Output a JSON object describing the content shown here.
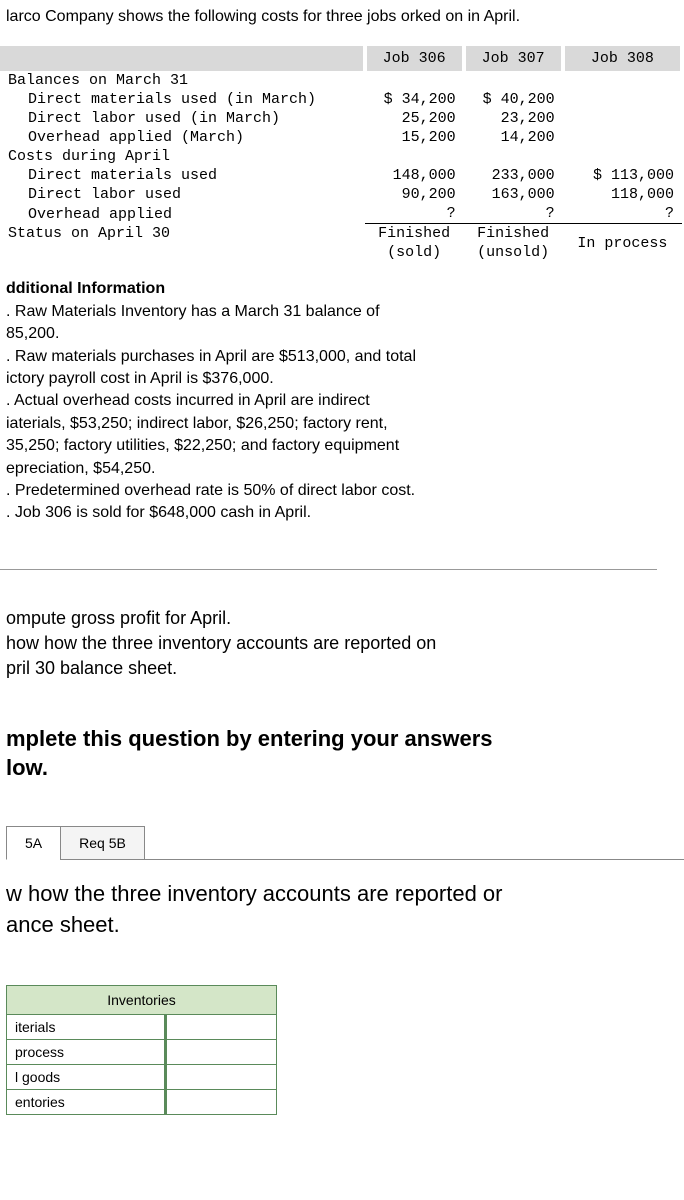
{
  "intro": "larco Company shows the following costs for three jobs \norked on in April.",
  "jobTable": {
    "headers": [
      "",
      "Job 306",
      "Job 307",
      "Job 308"
    ],
    "rows": [
      {
        "label": "Balances on March 31",
        "indent": false,
        "j306": "",
        "j307": "",
        "j308": ""
      },
      {
        "label": "Direct materials used (in March)",
        "indent": true,
        "j306": "$ 34,200",
        "j307": "$ 40,200",
        "j308": ""
      },
      {
        "label": "Direct labor used (in March)",
        "indent": true,
        "j306": "25,200",
        "j307": "23,200",
        "j308": ""
      },
      {
        "label": "Overhead applied (March)",
        "indent": true,
        "j306": "15,200",
        "j307": "14,200",
        "j308": ""
      },
      {
        "label": "Costs during April",
        "indent": false,
        "j306": "",
        "j307": "",
        "j308": ""
      },
      {
        "label": "Direct materials used",
        "indent": true,
        "j306": "148,000",
        "j307": "233,000",
        "j308": "$ 113,000"
      },
      {
        "label": "Direct labor used",
        "indent": true,
        "j306": "90,200",
        "j307": "163,000",
        "j308": "118,000"
      },
      {
        "label": "Overhead applied",
        "indent": true,
        "j306": "?",
        "j307": "?",
        "j308": "?"
      }
    ],
    "statusRow": {
      "label": "Status on April 30",
      "j306a": "Finished",
      "j306b": "(sold)",
      "j307a": "Finished",
      "j307b": "(unsold)",
      "j308": "In process"
    }
  },
  "additionalTitle": "dditional Information",
  "additionalLines": [
    ". Raw Materials Inventory has a March 31 balance of",
    "85,200.",
    ". Raw materials purchases in April are $513,000, and total",
    "ictory payroll cost in April is $376,000.",
    ". Actual overhead costs incurred in April are indirect",
    "iaterials, $53,250; indirect labor, $26,250; factory rent,",
    "35,250; factory utilities, $22,250; and factory equipment",
    "epreciation, $54,250.",
    ". Predetermined overhead rate is 50% of direct labor cost.",
    ". Job 306 is sold for $648,000 cash in April."
  ],
  "computeLines": [
    "ompute gross profit for April.",
    "how how the three inventory accounts are reported on",
    "pril 30 balance sheet."
  ],
  "completeText": "mplete this question by entering your answers\nlow.",
  "tabs": {
    "a": "5A",
    "b": "Req 5B"
  },
  "questionText": "w how the three inventory accounts are reported or\nance sheet.",
  "invTable": {
    "header": "Inventories",
    "rows": [
      "iterials",
      "process",
      "l goods",
      "entories"
    ]
  },
  "colors": {
    "headerBg": "#d9d9d9",
    "invHeaderBg": "#d4e6c8",
    "invBorder": "#5a8a5a"
  }
}
